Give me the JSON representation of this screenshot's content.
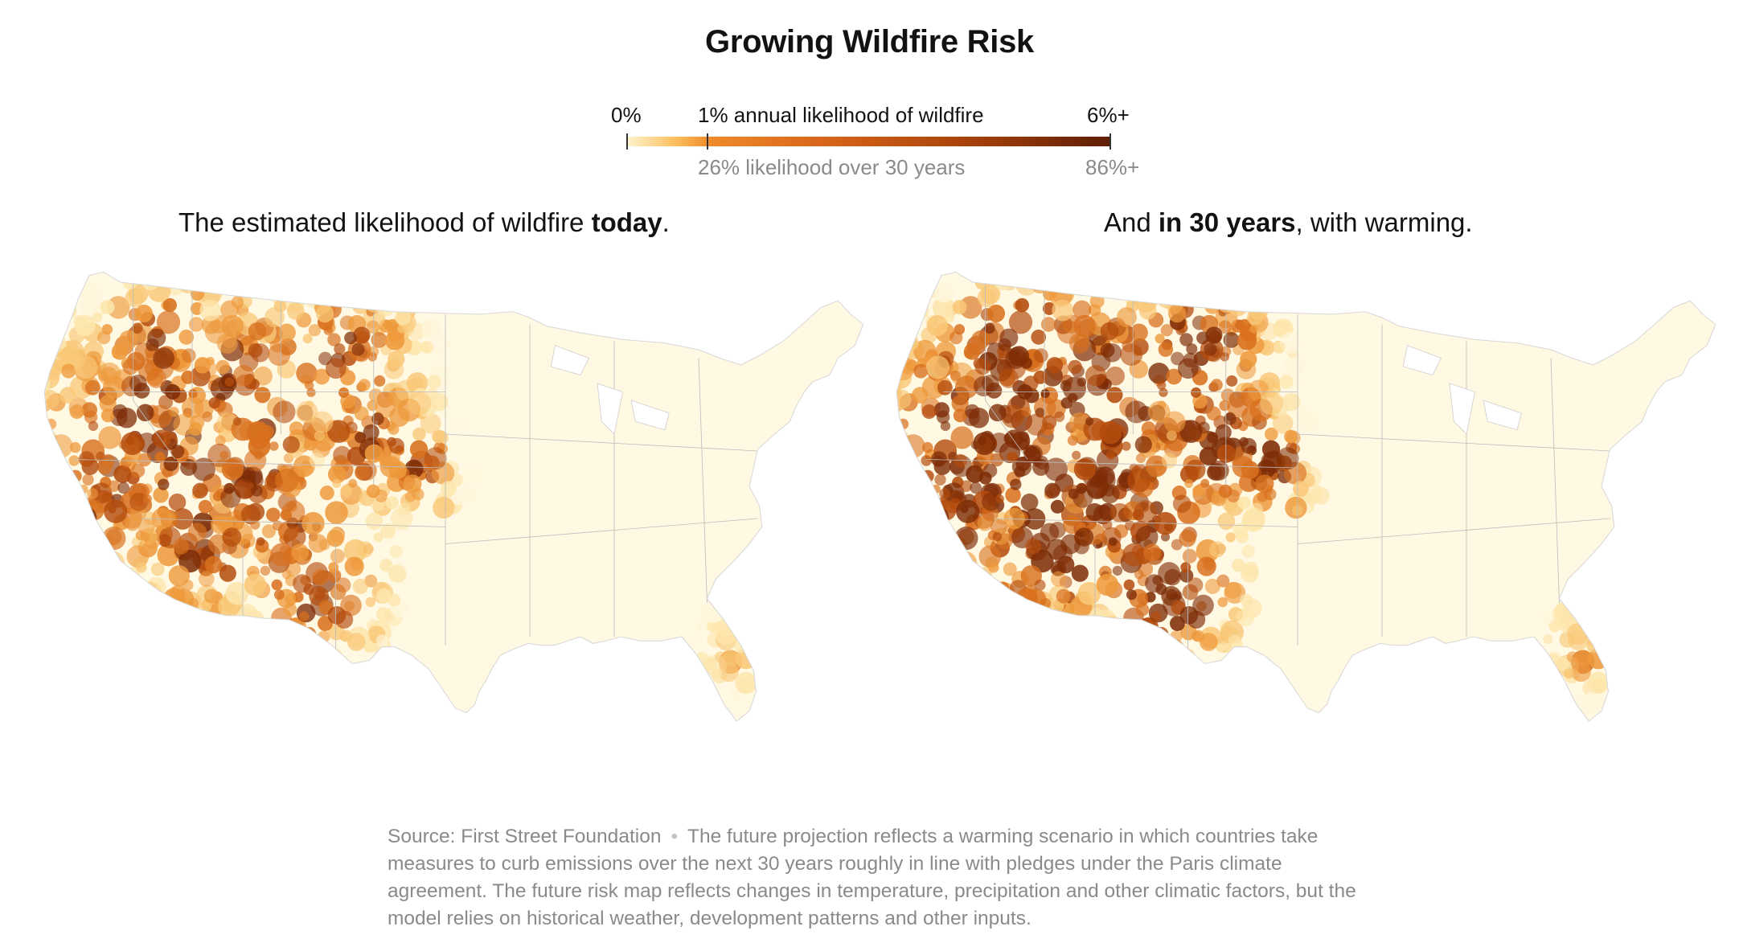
{
  "title": "Growing Wildfire Risk",
  "legend": {
    "low_label": "0%",
    "mid_label": "1% annual likelihood of wildfire",
    "high_label": "6%+",
    "mid_sub_label": "26% likelihood over 30 years",
    "high_sub_label": "86%+",
    "colors": [
      "#fff3cf",
      "#fbbf5e",
      "#ef8a2b",
      "#d9661a",
      "#a8420b",
      "#5e1d05"
    ]
  },
  "panels": [
    {
      "caption_pre": "The estimated likelihood of wildfire ",
      "caption_bold": "today",
      "caption_post": ".",
      "intensity": 1.0
    },
    {
      "caption_pre": "And ",
      "caption_bold": "in 30 years",
      "caption_post": ", with warming.",
      "intensity": 1.3
    }
  ],
  "source": {
    "label": "Source: First Street Foundation",
    "separator": "•",
    "note": "The future projection reflects a warming scenario in which countries take measures to curb emissions over the next 30 years roughly in line with pledges under the Paris climate agreement. The future risk map reflects changes in temperature, precipitation and other climatic factors, but the model relies on historical weather, development patterns and other inputs."
  }
}
